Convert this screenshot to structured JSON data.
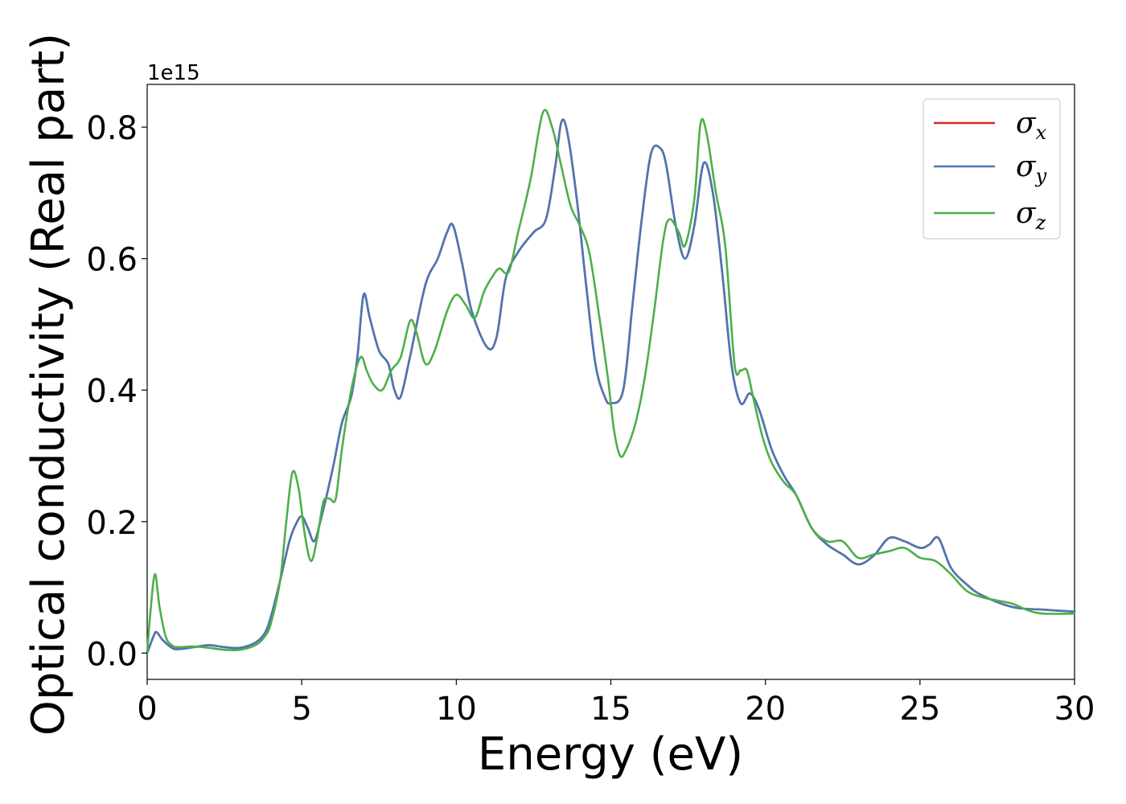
{
  "chart_data": {
    "type": "line",
    "xlabel": "Energy (eV)",
    "ylabel": "Optical conductivity (Real part)",
    "y_offset_text": "1e15",
    "y_scale": 1000000000000000.0,
    "xlim": [
      0,
      30
    ],
    "ylim": [
      -0.04,
      0.865
    ],
    "xticks": [
      0,
      5,
      10,
      15,
      20,
      25,
      30
    ],
    "xtick_labels": [
      "0",
      "5",
      "10",
      "15",
      "20",
      "25",
      "30"
    ],
    "yticks": [
      0.0,
      0.2,
      0.4,
      0.6,
      0.8
    ],
    "ytick_labels": [
      "0.0",
      "0.2",
      "0.4",
      "0.6",
      "0.8"
    ],
    "grid": false,
    "legend_position": "top-right",
    "series": [
      {
        "name": "σx",
        "symbol": "σ",
        "subscript": "x",
        "color": "#d62728",
        "x": [
          0,
          0.2,
          0.3,
          0.5,
          0.8,
          1.0,
          1.5,
          2.0,
          2.5,
          3.0,
          3.5,
          3.8,
          4.0,
          4.3,
          4.6,
          4.8,
          5.0,
          5.2,
          5.4,
          5.6,
          6.0,
          6.3,
          6.6,
          6.8,
          7.0,
          7.2,
          7.5,
          7.8,
          8.0,
          8.2,
          8.5,
          9.0,
          9.4,
          9.7,
          9.9,
          10.2,
          10.5,
          11.0,
          11.3,
          11.6,
          12.0,
          12.5,
          12.9,
          13.2,
          13.4,
          13.6,
          13.9,
          14.2,
          14.5,
          14.8,
          15.0,
          15.4,
          15.7,
          16.0,
          16.3,
          16.6,
          16.8,
          17.1,
          17.4,
          17.7,
          18.0,
          18.3,
          18.6,
          18.9,
          19.2,
          19.5,
          19.8,
          20.2,
          20.6,
          21.0,
          21.5,
          22.0,
          22.5,
          23.0,
          23.5,
          24.0,
          24.5,
          25.0,
          25.3,
          25.6,
          26.0,
          26.5,
          27.0,
          28.0,
          29.0,
          30.0
        ],
        "values": [
          0.0,
          0.025,
          0.032,
          0.02,
          0.008,
          0.006,
          0.009,
          0.012,
          0.009,
          0.008,
          0.016,
          0.03,
          0.055,
          0.11,
          0.17,
          0.195,
          0.208,
          0.19,
          0.17,
          0.2,
          0.28,
          0.35,
          0.39,
          0.45,
          0.545,
          0.51,
          0.46,
          0.44,
          0.4,
          0.39,
          0.45,
          0.56,
          0.6,
          0.64,
          0.65,
          0.59,
          0.52,
          0.465,
          0.48,
          0.57,
          0.61,
          0.64,
          0.66,
          0.74,
          0.808,
          0.79,
          0.69,
          0.56,
          0.44,
          0.39,
          0.38,
          0.4,
          0.53,
          0.66,
          0.76,
          0.768,
          0.74,
          0.65,
          0.6,
          0.65,
          0.745,
          0.7,
          0.58,
          0.44,
          0.38,
          0.395,
          0.37,
          0.31,
          0.27,
          0.24,
          0.19,
          0.165,
          0.15,
          0.135,
          0.148,
          0.175,
          0.17,
          0.16,
          0.165,
          0.175,
          0.13,
          0.105,
          0.088,
          0.07,
          0.066,
          0.063
        ]
      },
      {
        "name": "σy",
        "symbol": "σ",
        "subscript": "y",
        "color": "#4a77b4",
        "x": [
          0,
          0.2,
          0.3,
          0.5,
          0.8,
          1.0,
          1.5,
          2.0,
          2.5,
          3.0,
          3.5,
          3.8,
          4.0,
          4.3,
          4.6,
          4.8,
          5.0,
          5.2,
          5.4,
          5.6,
          6.0,
          6.3,
          6.6,
          6.8,
          7.0,
          7.2,
          7.5,
          7.8,
          8.0,
          8.2,
          8.5,
          9.0,
          9.4,
          9.7,
          9.9,
          10.2,
          10.5,
          11.0,
          11.3,
          11.6,
          12.0,
          12.5,
          12.9,
          13.2,
          13.4,
          13.6,
          13.9,
          14.2,
          14.5,
          14.8,
          15.0,
          15.4,
          15.7,
          16.0,
          16.3,
          16.6,
          16.8,
          17.1,
          17.4,
          17.7,
          18.0,
          18.3,
          18.6,
          18.9,
          19.2,
          19.5,
          19.8,
          20.2,
          20.6,
          21.0,
          21.5,
          22.0,
          22.5,
          23.0,
          23.5,
          24.0,
          24.5,
          25.0,
          25.3,
          25.6,
          26.0,
          26.5,
          27.0,
          28.0,
          29.0,
          30.0
        ],
        "values": [
          0.0,
          0.025,
          0.032,
          0.02,
          0.008,
          0.006,
          0.009,
          0.012,
          0.009,
          0.008,
          0.016,
          0.03,
          0.055,
          0.11,
          0.17,
          0.195,
          0.208,
          0.19,
          0.17,
          0.2,
          0.28,
          0.35,
          0.39,
          0.45,
          0.545,
          0.51,
          0.46,
          0.44,
          0.4,
          0.39,
          0.45,
          0.56,
          0.6,
          0.64,
          0.65,
          0.59,
          0.52,
          0.465,
          0.48,
          0.57,
          0.61,
          0.64,
          0.66,
          0.74,
          0.808,
          0.79,
          0.69,
          0.56,
          0.44,
          0.39,
          0.38,
          0.4,
          0.53,
          0.66,
          0.76,
          0.768,
          0.74,
          0.65,
          0.6,
          0.65,
          0.745,
          0.7,
          0.58,
          0.44,
          0.38,
          0.395,
          0.37,
          0.31,
          0.27,
          0.24,
          0.19,
          0.165,
          0.15,
          0.135,
          0.148,
          0.175,
          0.17,
          0.16,
          0.165,
          0.175,
          0.13,
          0.105,
          0.088,
          0.07,
          0.066,
          0.063
        ]
      },
      {
        "name": "σz",
        "symbol": "σ",
        "subscript": "z",
        "color": "#4daf4a",
        "x": [
          0,
          0.1,
          0.25,
          0.4,
          0.6,
          0.8,
          1.0,
          1.5,
          2.0,
          2.5,
          3.0,
          3.5,
          3.8,
          4.0,
          4.3,
          4.5,
          4.7,
          4.9,
          5.1,
          5.3,
          5.5,
          5.7,
          5.9,
          6.1,
          6.3,
          6.6,
          6.9,
          7.1,
          7.3,
          7.6,
          7.9,
          8.2,
          8.5,
          8.7,
          9.0,
          9.3,
          9.7,
          10.0,
          10.3,
          10.6,
          10.9,
          11.2,
          11.4,
          11.7,
          12.0,
          12.4,
          12.8,
          13.1,
          13.4,
          13.7,
          14.0,
          14.3,
          14.6,
          14.9,
          15.1,
          15.3,
          15.5,
          15.8,
          16.1,
          16.4,
          16.7,
          16.9,
          17.2,
          17.4,
          17.7,
          17.9,
          18.1,
          18.4,
          18.7,
          19.0,
          19.2,
          19.4,
          19.6,
          19.9,
          20.2,
          20.6,
          21.0,
          21.5,
          22.0,
          22.5,
          23.0,
          23.5,
          24.0,
          24.5,
          25.0,
          25.5,
          26.0,
          26.5,
          27.0,
          27.5,
          28.0,
          28.5,
          29.0,
          30.0
        ],
        "values": [
          0.0,
          0.06,
          0.12,
          0.07,
          0.025,
          0.012,
          0.009,
          0.01,
          0.008,
          0.005,
          0.005,
          0.012,
          0.025,
          0.045,
          0.11,
          0.2,
          0.275,
          0.25,
          0.18,
          0.14,
          0.175,
          0.23,
          0.235,
          0.235,
          0.31,
          0.4,
          0.45,
          0.43,
          0.41,
          0.4,
          0.43,
          0.45,
          0.505,
          0.49,
          0.44,
          0.46,
          0.52,
          0.545,
          0.53,
          0.51,
          0.55,
          0.575,
          0.585,
          0.58,
          0.64,
          0.72,
          0.822,
          0.8,
          0.74,
          0.68,
          0.65,
          0.61,
          0.52,
          0.42,
          0.34,
          0.3,
          0.31,
          0.35,
          0.42,
          0.52,
          0.63,
          0.66,
          0.64,
          0.62,
          0.69,
          0.805,
          0.79,
          0.7,
          0.62,
          0.44,
          0.43,
          0.43,
          0.39,
          0.33,
          0.29,
          0.26,
          0.24,
          0.19,
          0.17,
          0.17,
          0.145,
          0.15,
          0.155,
          0.16,
          0.145,
          0.14,
          0.12,
          0.095,
          0.085,
          0.08,
          0.075,
          0.065,
          0.06,
          0.06
        ]
      }
    ]
  }
}
